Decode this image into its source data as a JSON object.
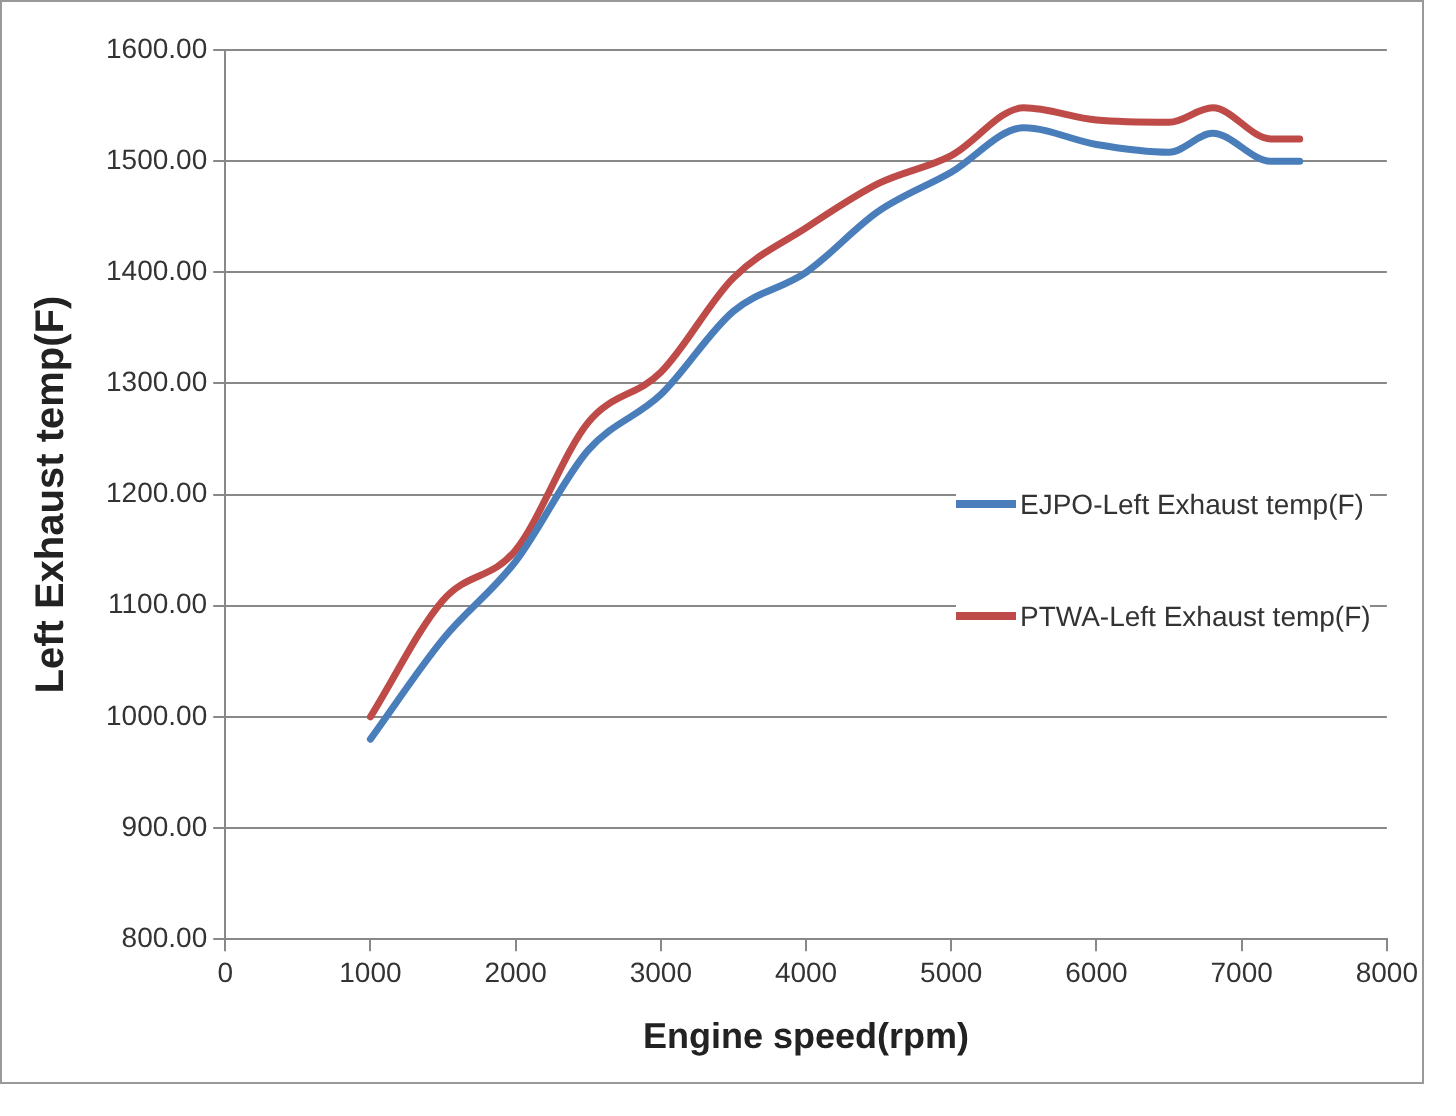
{
  "chart_data": {
    "type": "line",
    "xlabel": "Engine speed(rpm)",
    "ylabel": "Left Exhaust temp(F)",
    "x": [
      1000,
      1500,
      2000,
      2500,
      3000,
      3500,
      4000,
      4500,
      5000,
      5500,
      6000,
      6500,
      6800,
      7200,
      7400
    ],
    "series": [
      {
        "name": "EJPO-Left Exhaust temp(F)",
        "color": "#4a7ebb",
        "values": [
          980,
          1070,
          1140,
          1240,
          1290,
          1365,
          1400,
          1455,
          1490,
          1530,
          1515,
          1508,
          1525,
          1500,
          1500
        ]
      },
      {
        "name": "PTWA-Left Exhaust temp(F)",
        "color": "#be4b48",
        "values": [
          1000,
          1105,
          1150,
          1265,
          1310,
          1395,
          1440,
          1480,
          1505,
          1548,
          1537,
          1535,
          1548,
          1520,
          1520
        ]
      }
    ],
    "xlim": [
      0,
      8000
    ],
    "xticks": [
      0,
      1000,
      2000,
      3000,
      4000,
      5000,
      6000,
      7000,
      8000
    ],
    "ylim": [
      800,
      1600
    ],
    "yticks": [
      {
        "value": 800,
        "label": "800.00"
      },
      {
        "value": 900,
        "label": "900.00"
      },
      {
        "value": 1000,
        "label": "1000.00"
      },
      {
        "value": 1100,
        "label": "1100.00"
      },
      {
        "value": 1200,
        "label": "1200.00"
      },
      {
        "value": 1300,
        "label": "1300.00"
      },
      {
        "value": 1400,
        "label": "1400.00"
      },
      {
        "value": 1500,
        "label": "1500.00"
      },
      {
        "value": 1600,
        "label": "1600.00"
      }
    ],
    "grid": "y",
    "legend": "right",
    "marker": "none",
    "line_style": "solid"
  }
}
